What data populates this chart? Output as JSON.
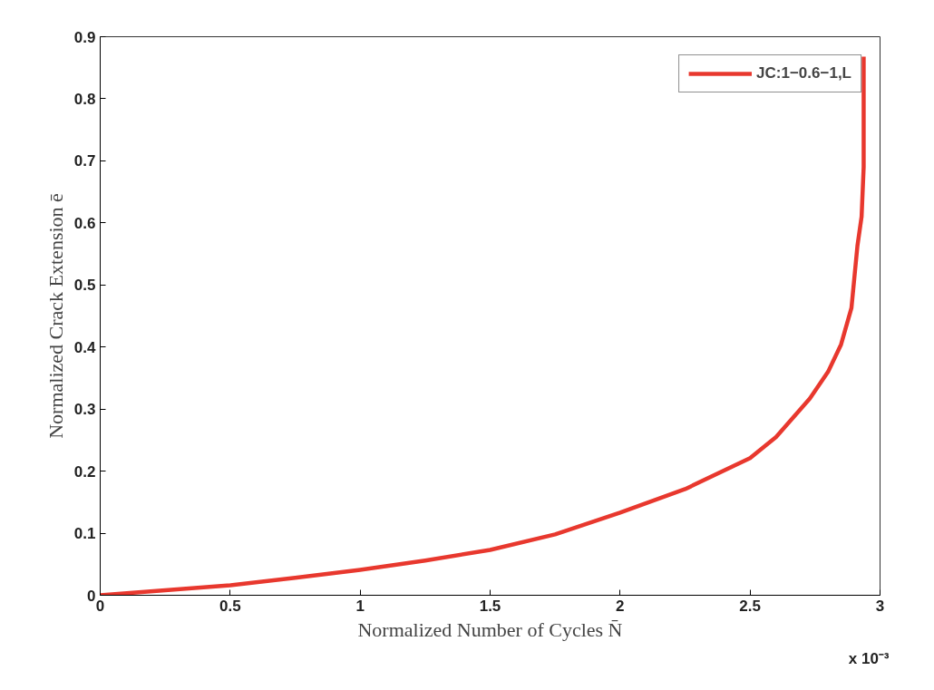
{
  "chart_data": {
    "type": "line",
    "xlabel": "Normalized Number of Cycles N̄",
    "ylabel": "Normalized Crack Extension ē",
    "annotations": [
      "x 10⁻³"
    ],
    "xlim": [
      0,
      3
    ],
    "ylim": [
      0,
      0.9
    ],
    "xticks": [
      0,
      0.5,
      1,
      1.5,
      2,
      2.5,
      3
    ],
    "yticks": [
      0,
      0.1,
      0.2,
      0.3,
      0.4,
      0.5,
      0.6,
      0.7,
      0.8,
      0.9
    ],
    "grid": false,
    "legend": "top right",
    "line_style": "solid",
    "series": [
      {
        "name": "JC:1−0.6−1,L",
        "color": "#e8382e",
        "x": [
          0,
          0.25,
          0.5,
          0.75,
          1,
          1.25,
          1.5,
          1.75,
          2,
          2.25,
          2.5,
          2.6,
          2.73,
          2.8,
          2.85,
          2.89,
          2.913,
          2.929,
          2.937,
          2.937
        ],
        "values": [
          0,
          0.008,
          0.016,
          0.028,
          0.041,
          0.056,
          0.073,
          0.098,
          0.133,
          0.171,
          0.221,
          0.255,
          0.317,
          0.36,
          0.404,
          0.463,
          0.563,
          0.61,
          0.69,
          0.868
        ]
      }
    ]
  }
}
